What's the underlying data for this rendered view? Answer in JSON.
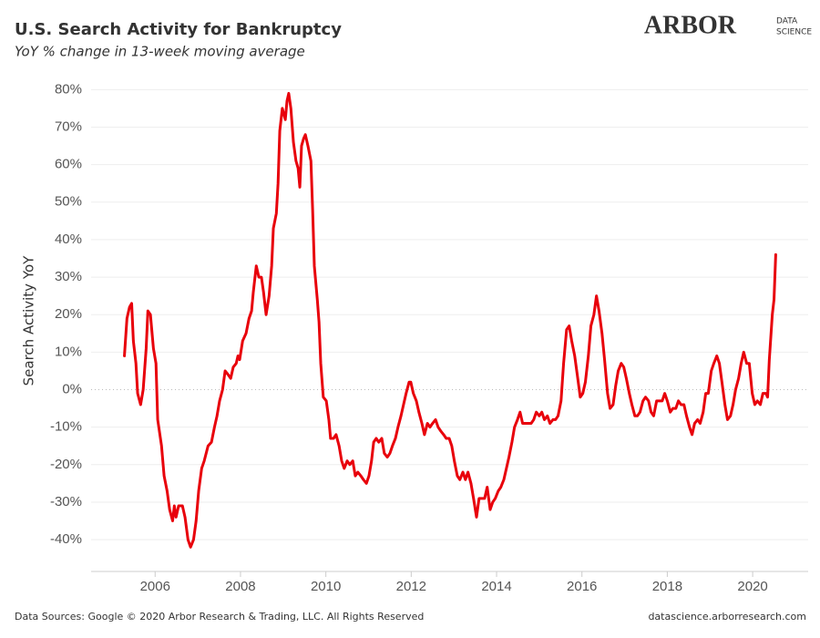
{
  "chart_data": {
    "type": "line",
    "title": "U.S. Search Activity for Bankruptcy",
    "subtitle": "YoY % change in 13-week moving average",
    "y_label": "Search Activity YoY",
    "color": "#e8000b",
    "grid": true,
    "zero_line": true,
    "xlim": [
      2004.5,
      2021.3
    ],
    "xticks": [
      2006,
      2008,
      2010,
      2012,
      2014,
      2016,
      2018,
      2020
    ],
    "ylim": [
      -48,
      83
    ],
    "yticks": [
      {
        "value": -40,
        "label": "-40%"
      },
      {
        "value": -30,
        "label": "-30%"
      },
      {
        "value": -20,
        "label": "-20%"
      },
      {
        "value": -10,
        "label": "-10%"
      },
      {
        "value": 0,
        "label": "0%"
      },
      {
        "value": 10,
        "label": "10%"
      },
      {
        "value": 20,
        "label": "20%"
      },
      {
        "value": 30,
        "label": "30%"
      },
      {
        "value": 40,
        "label": "40%"
      },
      {
        "value": 50,
        "label": "50%"
      },
      {
        "value": 60,
        "label": "60%"
      },
      {
        "value": 70,
        "label": "70%"
      },
      {
        "value": 80,
        "label": "80%"
      }
    ],
    "x": [
      2005.28,
      2005.34,
      2005.4,
      2005.45,
      2005.49,
      2005.55,
      2005.59,
      2005.66,
      2005.72,
      2005.79,
      2005.83,
      2005.89,
      2005.96,
      2006.02,
      2006.06,
      2006.15,
      2006.21,
      2006.28,
      2006.34,
      2006.41,
      2006.45,
      2006.49,
      2006.55,
      2006.64,
      2006.7,
      2006.77,
      2006.83,
      2006.9,
      2006.96,
      2007.02,
      2007.09,
      2007.15,
      2007.24,
      2007.32,
      2007.39,
      2007.45,
      2007.51,
      2007.58,
      2007.64,
      2007.71,
      2007.77,
      2007.83,
      2007.9,
      2007.94,
      2007.98,
      2008.05,
      2008.13,
      2008.2,
      2008.26,
      2008.3,
      2008.37,
      2008.43,
      2008.49,
      2008.54,
      2008.6,
      2008.67,
      2008.73,
      2008.77,
      2008.84,
      2008.88,
      2008.92,
      2008.98,
      2009.05,
      2009.09,
      2009.13,
      2009.18,
      2009.24,
      2009.3,
      2009.35,
      2009.39,
      2009.43,
      2009.48,
      2009.52,
      2009.58,
      2009.65,
      2009.69,
      2009.73,
      2009.8,
      2009.84,
      2009.88,
      2009.94,
      2010.01,
      2010.07,
      2010.11,
      2010.18,
      2010.24,
      2010.31,
      2010.37,
      2010.43,
      2010.5,
      2010.56,
      2010.63,
      2010.69,
      2010.75,
      2010.82,
      2010.88,
      2010.95,
      2011.01,
      2011.07,
      2011.12,
      2011.18,
      2011.24,
      2011.31,
      2011.37,
      2011.44,
      2011.5,
      2011.56,
      2011.63,
      2011.69,
      2011.76,
      2011.82,
      2011.88,
      2011.95,
      2011.99,
      2012.05,
      2012.12,
      2012.18,
      2012.25,
      2012.31,
      2012.38,
      2012.44,
      2012.5,
      2012.57,
      2012.63,
      2012.69,
      2012.76,
      2012.82,
      2012.89,
      2012.95,
      2013.01,
      2013.08,
      2013.14,
      2013.21,
      2013.27,
      2013.33,
      2013.4,
      2013.46,
      2013.53,
      2013.59,
      2013.65,
      2013.72,
      2013.78,
      2013.85,
      2013.91,
      2013.97,
      2014.04,
      2014.1,
      2014.17,
      2014.23,
      2014.29,
      2014.36,
      2014.42,
      2014.49,
      2014.55,
      2014.61,
      2014.68,
      2014.74,
      2014.81,
      2014.87,
      2014.93,
      2015.0,
      2015.06,
      2015.12,
      2015.19,
      2015.25,
      2015.32,
      2015.38,
      2015.44,
      2015.51,
      2015.57,
      2015.64,
      2015.7,
      2015.76,
      2015.83,
      2015.89,
      2015.96,
      2016.02,
      2016.08,
      2016.15,
      2016.21,
      2016.28,
      2016.34,
      2016.4,
      2016.47,
      2016.53,
      2016.6,
      2016.66,
      2016.73,
      2016.79,
      2016.85,
      2016.92,
      2016.98,
      2017.04,
      2017.11,
      2017.17,
      2017.24,
      2017.3,
      2017.36,
      2017.43,
      2017.49,
      2017.56,
      2017.62,
      2017.68,
      2017.75,
      2017.81,
      2017.88,
      2017.94,
      2018.0,
      2018.07,
      2018.13,
      2018.2,
      2018.26,
      2018.32,
      2018.39,
      2018.45,
      2018.52,
      2018.58,
      2018.64,
      2018.71,
      2018.77,
      2018.84,
      2018.9,
      2018.96,
      2019.03,
      2019.09,
      2019.16,
      2019.22,
      2019.28,
      2019.35,
      2019.41,
      2019.48,
      2019.54,
      2019.6,
      2019.67,
      2019.73,
      2019.79,
      2019.86,
      2019.92,
      2019.99,
      2020.05,
      2020.11,
      2020.18,
      2020.24,
      2020.31,
      2020.35,
      2020.39,
      2020.46,
      2020.5,
      2020.54
    ],
    "values": [
      9,
      19,
      22,
      23,
      13,
      7,
      -1,
      -4,
      0,
      11,
      21,
      20,
      11,
      7,
      -8,
      -15,
      -23,
      -27,
      -32,
      -35,
      -31,
      -34,
      -31,
      -31,
      -34,
      -40,
      -42,
      -40,
      -35,
      -27,
      -21,
      -19,
      -15,
      -14,
      -10,
      -7,
      -3,
      0,
      5,
      4,
      3,
      6,
      7,
      9,
      8,
      13,
      15,
      19,
      21,
      26,
      33,
      30,
      30,
      26,
      20,
      25,
      33,
      43,
      47,
      55,
      69,
      75,
      72,
      77,
      79,
      75,
      66,
      61,
      59,
      54,
      65,
      67,
      68,
      65,
      61,
      48,
      33,
      24,
      18,
      7,
      -2,
      -3,
      -8,
      -13,
      -13,
      -12,
      -15,
      -19,
      -21,
      -19,
      -20,
      -19,
      -23,
      -22,
      -23,
      -24,
      -25,
      -23,
      -19,
      -14,
      -13,
      -14,
      -13,
      -17,
      -18,
      -17,
      -15,
      -13,
      -10,
      -7,
      -4,
      -1,
      2,
      2,
      -1,
      -3,
      -6,
      -9,
      -12,
      -9,
      -10,
      -9,
      -8,
      -10,
      -11,
      -12,
      -13,
      -13,
      -15,
      -19,
      -23,
      -24,
      -22,
      -24,
      -22,
      -25,
      -29,
      -34,
      -29,
      -29,
      -29,
      -26,
      -32,
      -30,
      -29,
      -27,
      -26,
      -24,
      -21,
      -18,
      -14,
      -10,
      -8,
      -6,
      -9,
      -9,
      -9,
      -9,
      -8,
      -6,
      -7,
      -6,
      -8,
      -7,
      -9,
      -8,
      -8,
      -7,
      -3,
      7,
      16,
      17,
      13,
      9,
      4,
      -2,
      -1,
      2,
      9,
      17,
      20,
      25,
      21,
      15,
      8,
      -1,
      -5,
      -4,
      1,
      5,
      7,
      6,
      3,
      -1,
      -4,
      -7,
      -7,
      -6,
      -3,
      -2,
      -3,
      -6,
      -7,
      -3,
      -3,
      -3,
      -1,
      -3,
      -6,
      -5,
      -5,
      -3,
      -4,
      -4,
      -7,
      -10,
      -12,
      -9,
      -8,
      -9,
      -6,
      -1,
      -1,
      5,
      7,
      9,
      7,
      2,
      -4,
      -8,
      -7,
      -4,
      0,
      3,
      7,
      10,
      7,
      7,
      -1,
      -4,
      -3,
      -4,
      -1,
      -1,
      -2,
      8,
      20,
      24,
      36
    ]
  },
  "logo": {
    "main": "ARBOR",
    "top": "DATA",
    "bottom": "SCIENCE"
  },
  "footer": {
    "left": "Data Sources: Google © 2020 Arbor Research & Trading, LLC. All Rights Reserved",
    "right": "datascience.arborresearch.com"
  }
}
